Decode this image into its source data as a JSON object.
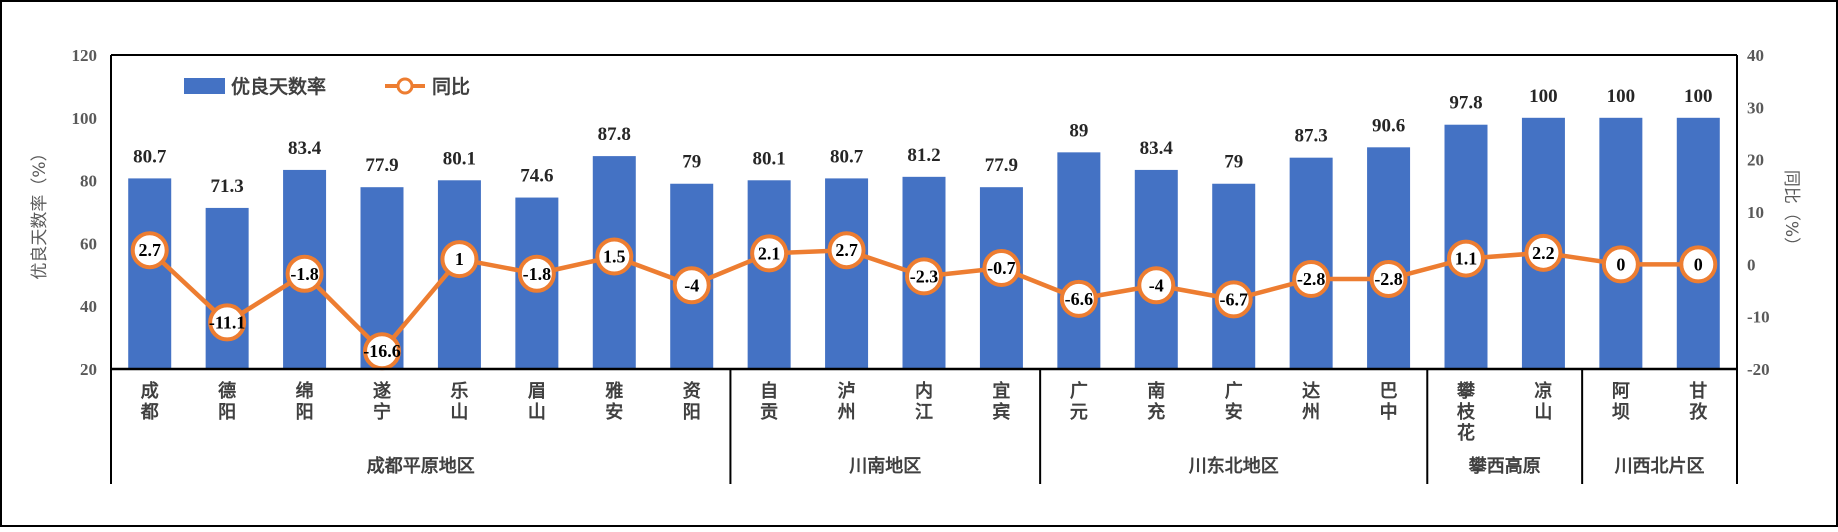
{
  "chart_data": {
    "type": "bar+line",
    "categories": [
      "成都",
      "德阳",
      "绵阳",
      "遂宁",
      "乐山",
      "眉山",
      "雅安",
      "资阳",
      "自贡",
      "泸州",
      "内江",
      "宜宾",
      "广元",
      "南充",
      "广安",
      "达州",
      "巴中",
      "攀枝花",
      "凉山",
      "阿坝",
      "甘孜"
    ],
    "groups": [
      {
        "name": "成都平原地区",
        "count": 8
      },
      {
        "name": "川南地区",
        "count": 4
      },
      {
        "name": "川东北地区",
        "count": 5
      },
      {
        "name": "攀西高原",
        "count": 2
      },
      {
        "name": "川西北片区",
        "count": 2
      }
    ],
    "series": [
      {
        "name": "优良天数率",
        "type": "bar",
        "axis": "left",
        "color": "#4472C4",
        "values": [
          80.7,
          71.3,
          83.4,
          77.9,
          80.1,
          74.6,
          87.8,
          79,
          80.1,
          80.7,
          81.2,
          77.9,
          89,
          83.4,
          79,
          87.3,
          90.6,
          97.8,
          100,
          100,
          100
        ]
      },
      {
        "name": "同比",
        "type": "line",
        "axis": "right",
        "color": "#ED7D31",
        "values": [
          2.7,
          -11.1,
          -1.8,
          -16.6,
          1,
          -1.8,
          1.5,
          -4,
          2.1,
          2.7,
          -2.3,
          -0.7,
          -6.6,
          -4,
          -6.7,
          -2.8,
          -2.8,
          1.1,
          2.2,
          0,
          0
        ]
      }
    ],
    "ylabel": "优良天数率（%）",
    "y2label": "同比（%）",
    "ylim": [
      20,
      120
    ],
    "yticks": [
      20,
      40,
      60,
      80,
      100,
      120
    ],
    "y2lim": [
      -20,
      40
    ],
    "y2ticks": [
      -20,
      -10,
      0,
      10,
      20,
      30,
      40
    ],
    "legend": "top-left",
    "grid": false
  }
}
